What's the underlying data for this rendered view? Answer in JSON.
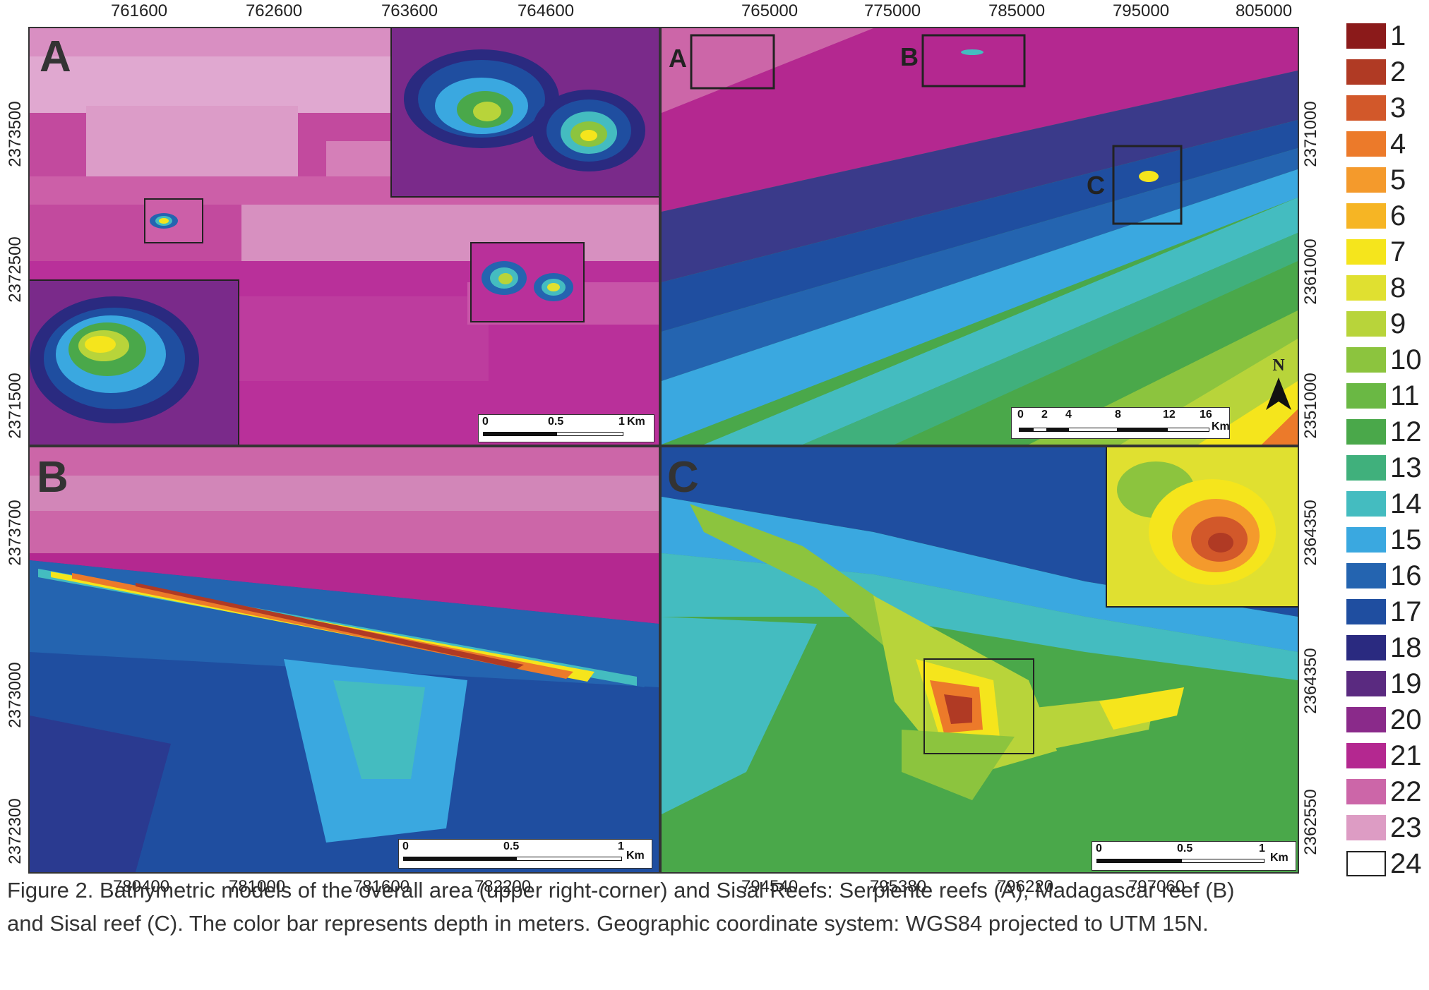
{
  "panels": {
    "A": {
      "letter": "A",
      "x_ticks": [
        "761600",
        "762600",
        "763600",
        "764600"
      ],
      "y_ticks": [
        "2373500",
        "2372500",
        "2371500"
      ],
      "scalebar": {
        "labels": [
          "0",
          "0.5",
          "1"
        ],
        "unit": "Km"
      }
    },
    "overview": {
      "x_ticks": [
        "765000",
        "775000",
        "785000",
        "795000",
        "805000"
      ],
      "y_ticks": [
        "2371000",
        "2361000",
        "2351000"
      ],
      "box_labels": [
        "A",
        "B",
        "C"
      ],
      "scalebar": {
        "labels": [
          "0",
          "2",
          "4",
          "8",
          "12",
          "16"
        ],
        "unit": "Km"
      },
      "north": "N"
    },
    "B": {
      "letter": "B",
      "x_ticks": [
        "780400",
        "781000",
        "781600",
        "782200"
      ],
      "y_ticks": [
        "2373700",
        "2373000",
        "2372300"
      ],
      "scalebar": {
        "labels": [
          "0",
          "0.5",
          "1"
        ],
        "unit": "Km"
      }
    },
    "C": {
      "letter": "C",
      "x_ticks": [
        "794540",
        "795380",
        "796220",
        "797060"
      ],
      "y_ticks": [
        "2364350",
        "2364350",
        "2362550"
      ],
      "scalebar": {
        "labels": [
          "0",
          "0.5",
          "1"
        ],
        "unit": "Km"
      }
    }
  },
  "legend": {
    "items": [
      {
        "label": "1",
        "color": "#8b1a1a"
      },
      {
        "label": "2",
        "color": "#b03a24"
      },
      {
        "label": "3",
        "color": "#d2582a"
      },
      {
        "label": "4",
        "color": "#ec7a2a"
      },
      {
        "label": "5",
        "color": "#f49a2c"
      },
      {
        "label": "6",
        "color": "#f6b524"
      },
      {
        "label": "7",
        "color": "#f5e51c"
      },
      {
        "label": "8",
        "color": "#e0e030"
      },
      {
        "label": "9",
        "color": "#b8d43a"
      },
      {
        "label": "10",
        "color": "#8cc43e"
      },
      {
        "label": "11",
        "color": "#6ab844"
      },
      {
        "label": "12",
        "color": "#4aa84a"
      },
      {
        "label": "13",
        "color": "#40b07c"
      },
      {
        "label": "14",
        "color": "#44bcc0"
      },
      {
        "label": "15",
        "color": "#3aa8e0"
      },
      {
        "label": "16",
        "color": "#2464b0"
      },
      {
        "label": "17",
        "color": "#1f4ea0"
      },
      {
        "label": "18",
        "color": "#2a2a80"
      },
      {
        "label": "19",
        "color": "#5a2a80"
      },
      {
        "label": "20",
        "color": "#8a2a8a"
      },
      {
        "label": "21",
        "color": "#b42890"
      },
      {
        "label": "22",
        "color": "#cc66a8"
      },
      {
        "label": "23",
        "color": "#dd9cc4"
      },
      {
        "label": "24",
        "color": "#ffffff"
      }
    ]
  },
  "caption": {
    "line1": "Figure 2. Bathymetric models of the overall area (upper right-corner) and Sisal Reefs: Serpiente reefs (A), Madagascar reef (B)",
    "line2": "and Sisal reef (C). The color bar represents depth in meters. Geographic coordinate system: WGS84 projected to UTM 15N."
  }
}
